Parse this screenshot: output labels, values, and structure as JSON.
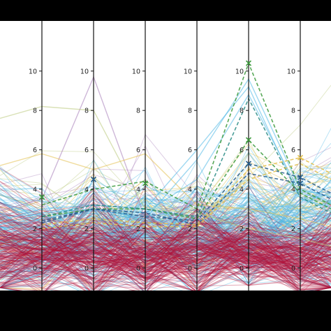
{
  "chart_data": {
    "type": "line",
    "subtype": "parallel-coordinates",
    "title": "",
    "xlabel": "",
    "ylabel": "",
    "axes_count": 6,
    "ylim": [
      -2,
      12
    ],
    "yticks": [
      -2,
      0,
      2,
      4,
      6,
      8,
      10
    ],
    "ytick_labels": [
      "",
      "0",
      "2",
      "4",
      "6",
      "8",
      "10"
    ],
    "grid": false,
    "legend": "none",
    "colors": {
      "crimson": "#b0143a",
      "sky": "#4fb8e6",
      "gold": "#e3c04c",
      "purple": "#a67bb8",
      "olive": "#b9c87a",
      "teal": "#2a8c86",
      "navy": "#245c8c",
      "green": "#3c9a3c"
    },
    "series": [
      {
        "color_key": "crimson",
        "count": 200,
        "mean": [
          0.8,
          0.7,
          0.6,
          0.9,
          0.9,
          0.3
        ],
        "spread": [
          1.1,
          1.2,
          1.0,
          1.2,
          0.9,
          0.8
        ],
        "dip_min": [
          -1.3,
          -1.4,
          -1.3,
          -1.2,
          -0.9,
          -1.3
        ],
        "alpha": 0.32
      },
      {
        "color_key": "sky",
        "count": 150,
        "mean": [
          1.3,
          1.5,
          1.6,
          1.5,
          2.0,
          1.9
        ],
        "spread": [
          1.3,
          1.4,
          1.3,
          1.4,
          1.6,
          1.4
        ],
        "dip_min": [
          -1.5,
          -1.5,
          -1.3,
          -1.4,
          -0.8,
          -1.2
        ],
        "alpha": 0.4
      },
      {
        "color_key": "gold",
        "count": 28,
        "mean": [
          1.5,
          2.0,
          1.8,
          1.5,
          3.0,
          3.2
        ],
        "spread": [
          1.3,
          1.5,
          1.5,
          1.3,
          1.4,
          1.3
        ],
        "dip_min": [
          -1.4,
          -1.2,
          -1.3,
          -1.3,
          0.0,
          0.0
        ],
        "alpha": 0.45
      },
      {
        "color_key": "purple",
        "count": 22,
        "mean": [
          1.6,
          2.4,
          2.0,
          1.8,
          2.4,
          2.0
        ],
        "spread": [
          1.6,
          2.2,
          1.8,
          1.5,
          1.8,
          1.6
        ],
        "dip_min": [
          -1.4,
          -1.2,
          -1.2,
          -1.2,
          0.0,
          -0.5
        ],
        "alpha": 0.38
      },
      {
        "color_key": "olive",
        "count": 14,
        "mean": [
          2.5,
          2.8,
          2.5,
          2.2,
          3.0,
          2.8
        ],
        "spread": [
          1.7,
          1.6,
          1.6,
          1.5,
          1.6,
          1.5
        ],
        "dip_min": [
          -1.0,
          -1.0,
          -1.0,
          -1.0,
          0.5,
          0.5
        ],
        "alpha": 0.4
      }
    ],
    "highlight_lines": [
      {
        "color_key": "purple",
        "values": [
          3.5,
          9.7,
          2.5,
          3.4,
          2.2,
          1.2
        ]
      },
      {
        "color_key": "olive",
        "values": [
          8.2,
          8.0,
          3.0,
          2.8,
          2.0,
          1.5
        ]
      },
      {
        "color_key": "gold",
        "values": [
          5.8,
          5.0,
          5.8,
          3.2,
          3.0,
          2.5
        ]
      },
      {
        "color_key": "sky",
        "values": [
          3.0,
          3.2,
          3.0,
          6.0,
          9.2,
          3.5
        ]
      },
      {
        "color_key": "sky",
        "values": [
          2.8,
          3.0,
          2.5,
          5.5,
          9.6,
          4.0
        ]
      },
      {
        "color_key": "sky",
        "values": [
          2.5,
          3.0,
          2.8,
          4.5,
          8.8,
          3.8
        ]
      }
    ],
    "dashed_lines": [
      {
        "color_key": "green",
        "values": [
          3.2,
          4.0,
          4.4,
          3.0,
          10.4,
          4.0
        ]
      },
      {
        "color_key": "green",
        "values": [
          2.6,
          3.0,
          3.0,
          2.5,
          6.5,
          3.8
        ]
      },
      {
        "color_key": "teal",
        "values": [
          2.6,
          3.2,
          3.0,
          2.6,
          8.6,
          3.6
        ]
      },
      {
        "color_key": "navy",
        "values": [
          2.3,
          3.0,
          2.6,
          2.4,
          5.3,
          4.6
        ]
      },
      {
        "color_key": "navy",
        "values": [
          2.4,
          3.0,
          2.8,
          2.2,
          4.8,
          4.3
        ]
      },
      {
        "color_key": "gold",
        "values": [
          2.2,
          2.5,
          2.3,
          2.2,
          5.0,
          5.6
        ]
      },
      {
        "color_key": "gold",
        "values": [
          2.0,
          2.3,
          2.1,
          2.1,
          4.5,
          5.3
        ]
      }
    ],
    "axis_markers": [
      {
        "axis": 0,
        "value": 3.6,
        "color_key": "green"
      },
      {
        "axis": 1,
        "value": 4.5,
        "color_key": "navy"
      },
      {
        "axis": 2,
        "value": 4.3,
        "color_key": "green"
      },
      {
        "axis": 4,
        "value": 10.4,
        "color_key": "green"
      },
      {
        "axis": 4,
        "value": 6.5,
        "color_key": "green"
      },
      {
        "axis": 4,
        "value": 5.3,
        "color_key": "navy"
      },
      {
        "axis": 5,
        "value": 5.6,
        "color_key": "gold"
      },
      {
        "axis": 5,
        "value": 4.6,
        "color_key": "navy"
      },
      {
        "axis": 5,
        "value": 4.3,
        "color_key": "navy"
      }
    ]
  }
}
